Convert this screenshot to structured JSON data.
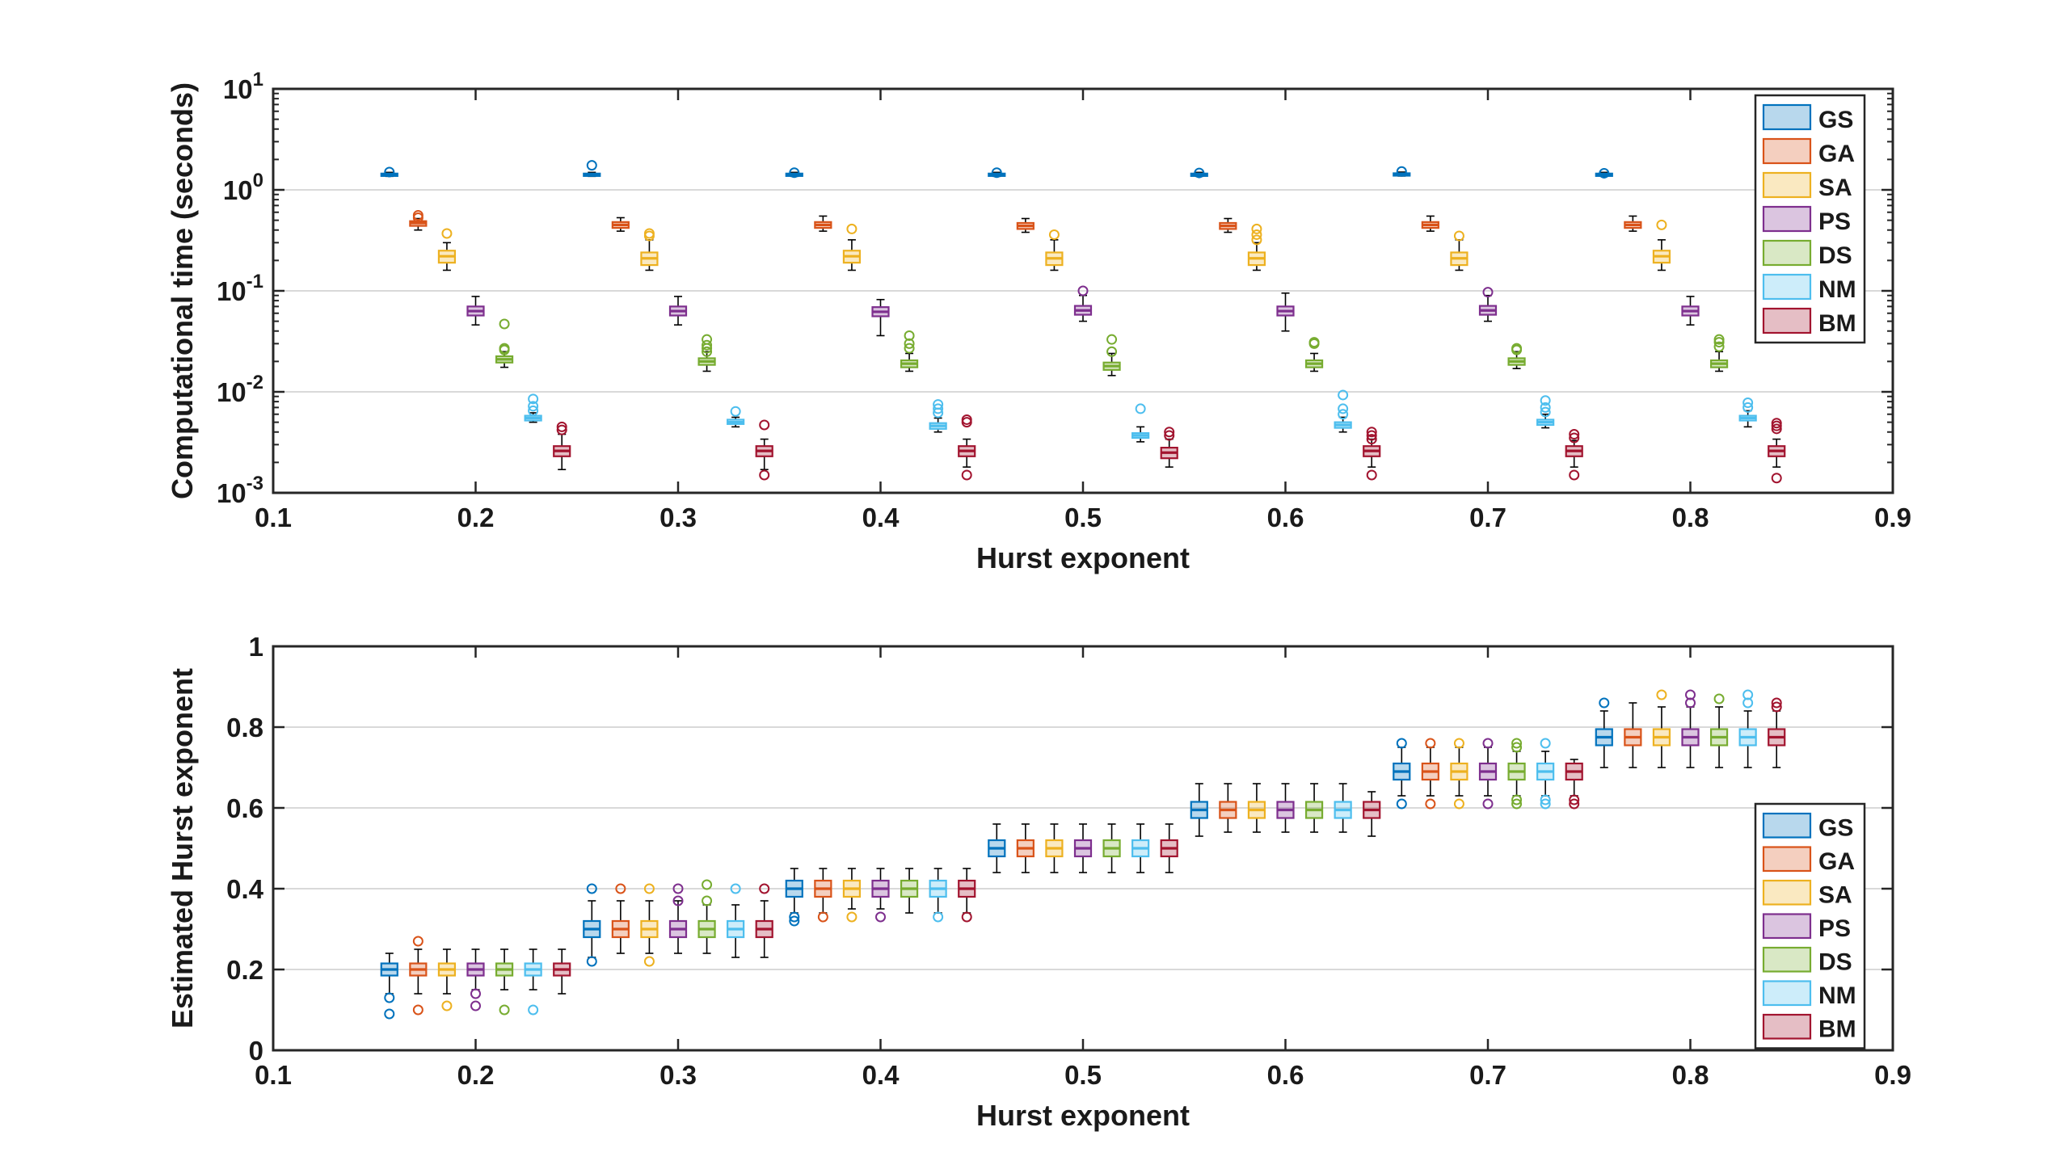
{
  "chart_data": [
    {
      "type": "box",
      "xlabel": "Hurst exponent",
      "ylabel": "Computational time (seconds)",
      "yscale": "log",
      "xlim": [
        0.1,
        0.9
      ],
      "ylim": [
        0.001,
        10
      ],
      "xticks": [
        "0.1",
        "0.2",
        "0.3",
        "0.4",
        "0.5",
        "0.6",
        "0.7",
        "0.8",
        "0.9"
      ],
      "yticks": [
        "10^-3",
        "10^-2",
        "10^-1",
        "10^0",
        "10^1"
      ],
      "grid": "horizontal",
      "legend": [
        "GS",
        "GA",
        "SA",
        "PS",
        "DS",
        "NM",
        "BM"
      ],
      "legend_position": "top-right",
      "hurst_values": [
        0.2,
        0.3,
        0.4,
        0.5,
        0.6,
        0.7,
        0.8
      ],
      "series": [
        {
          "name": "GS",
          "color": "#0072BD",
          "median": [
            1.42,
            1.42,
            1.42,
            1.42,
            1.42,
            1.43,
            1.42
          ],
          "q1": [
            1.39,
            1.39,
            1.39,
            1.39,
            1.39,
            1.4,
            1.39
          ],
          "q3": [
            1.45,
            1.45,
            1.45,
            1.45,
            1.45,
            1.46,
            1.45
          ],
          "whisker_low": [
            1.36,
            1.36,
            1.36,
            1.36,
            1.36,
            1.37,
            1.36
          ],
          "whisker_high": [
            1.49,
            1.49,
            1.49,
            1.49,
            1.49,
            1.5,
            1.49
          ],
          "outliers": [
            [
              1.5
            ],
            [
              1.75
            ],
            [
              1.48
            ],
            [
              1.48
            ],
            [
              1.47
            ],
            [
              1.52
            ],
            [
              1.46
            ]
          ]
        },
        {
          "name": "GA",
          "color": "#D95319",
          "median": [
            0.47,
            0.45,
            0.45,
            0.44,
            0.44,
            0.45,
            0.45
          ],
          "q1": [
            0.44,
            0.42,
            0.42,
            0.41,
            0.41,
            0.42,
            0.42
          ],
          "q3": [
            0.49,
            0.48,
            0.48,
            0.47,
            0.47,
            0.48,
            0.48
          ],
          "whisker_low": [
            0.4,
            0.39,
            0.39,
            0.38,
            0.38,
            0.39,
            0.39
          ],
          "whisker_high": [
            0.52,
            0.53,
            0.55,
            0.52,
            0.52,
            0.55,
            0.55
          ],
          "outliers": [
            [
              0.53,
              0.56
            ],
            [],
            [],
            [],
            [],
            [],
            []
          ]
        },
        {
          "name": "SA",
          "color": "#EDB120",
          "median": [
            0.22,
            0.21,
            0.22,
            0.21,
            0.21,
            0.21,
            0.22
          ],
          "q1": [
            0.19,
            0.18,
            0.19,
            0.18,
            0.18,
            0.18,
            0.19
          ],
          "q3": [
            0.25,
            0.24,
            0.25,
            0.24,
            0.24,
            0.24,
            0.25
          ],
          "whisker_low": [
            0.16,
            0.16,
            0.16,
            0.16,
            0.16,
            0.16,
            0.16
          ],
          "whisker_high": [
            0.3,
            0.32,
            0.32,
            0.32,
            0.3,
            0.32,
            0.32
          ],
          "outliers": [
            [
              0.37
            ],
            [
              0.35,
              0.37
            ],
            [
              0.41
            ],
            [
              0.36
            ],
            [
              0.32,
              0.36,
              0.41
            ],
            [
              0.35
            ],
            [
              0.45
            ]
          ]
        },
        {
          "name": "PS",
          "color": "#7E2F8E",
          "median": [
            0.063,
            0.063,
            0.062,
            0.064,
            0.063,
            0.064,
            0.063
          ],
          "q1": [
            0.057,
            0.057,
            0.056,
            0.058,
            0.057,
            0.058,
            0.057
          ],
          "q3": [
            0.07,
            0.07,
            0.069,
            0.071,
            0.07,
            0.071,
            0.07
          ],
          "whisker_low": [
            0.046,
            0.046,
            0.036,
            0.05,
            0.04,
            0.05,
            0.046
          ],
          "whisker_high": [
            0.088,
            0.088,
            0.082,
            0.09,
            0.095,
            0.09,
            0.088
          ],
          "outliers": [
            [],
            [],
            [],
            [
              0.1
            ],
            [],
            [
              0.097
            ],
            []
          ]
        },
        {
          "name": "DS",
          "color": "#77AC30",
          "median": [
            0.021,
            0.02,
            0.019,
            0.018,
            0.019,
            0.02,
            0.019
          ],
          "q1": [
            0.0195,
            0.0185,
            0.0175,
            0.0165,
            0.0175,
            0.0185,
            0.0175
          ],
          "q3": [
            0.0225,
            0.0215,
            0.0205,
            0.0195,
            0.0205,
            0.0215,
            0.0205
          ],
          "whisker_low": [
            0.0175,
            0.016,
            0.016,
            0.0145,
            0.016,
            0.017,
            0.016
          ],
          "whisker_high": [
            0.025,
            0.025,
            0.024,
            0.024,
            0.024,
            0.025,
            0.025
          ],
          "outliers": [
            [
              0.026,
              0.027,
              0.047
            ],
            [
              0.025,
              0.027,
              0.029,
              0.033
            ],
            [
              0.027,
              0.03,
              0.036
            ],
            [
              0.025,
              0.033
            ],
            [
              0.03,
              0.031
            ],
            [
              0.026,
              0.027
            ],
            [
              0.028,
              0.031,
              0.033
            ]
          ]
        },
        {
          "name": "NM",
          "color": "#4DBEEE",
          "median": [
            0.0055,
            0.005,
            0.0046,
            0.0037,
            0.0047,
            0.005,
            0.0055
          ],
          "q1": [
            0.0052,
            0.0048,
            0.0043,
            0.0035,
            0.0044,
            0.0047,
            0.0052
          ],
          "q3": [
            0.0058,
            0.0053,
            0.0049,
            0.0039,
            0.005,
            0.0053,
            0.0058
          ],
          "whisker_low": [
            0.005,
            0.0045,
            0.004,
            0.0032,
            0.004,
            0.0044,
            0.0045
          ],
          "whisker_high": [
            0.0062,
            0.0056,
            0.0055,
            0.0045,
            0.0056,
            0.006,
            0.0065
          ],
          "outliers": [
            [
              0.0065,
              0.0072,
              0.0085
            ],
            [
              0.0064
            ],
            [
              0.0062,
              0.0068,
              0.0075
            ],
            [
              0.0068
            ],
            [
              0.006,
              0.0068,
              0.0093
            ],
            [
              0.0063,
              0.007,
              0.0082
            ],
            [
              0.007,
              0.0078
            ]
          ]
        },
        {
          "name": "BM",
          "color": "#A2142F",
          "median": [
            0.0026,
            0.0026,
            0.0026,
            0.0025,
            0.0026,
            0.0026,
            0.0026
          ],
          "q1": [
            0.0023,
            0.0023,
            0.0023,
            0.0022,
            0.0023,
            0.0023,
            0.0023
          ],
          "q3": [
            0.0029,
            0.0029,
            0.0029,
            0.0028,
            0.0029,
            0.0029,
            0.0029
          ],
          "whisker_low": [
            0.0017,
            0.0017,
            0.0018,
            0.0018,
            0.0018,
            0.0018,
            0.0018
          ],
          "whisker_high": [
            0.0038,
            0.0034,
            0.0034,
            0.0034,
            0.0034,
            0.0033,
            0.0034
          ],
          "outliers": [
            [
              0.0042,
              0.0045
            ],
            [
              0.0015,
              0.0047
            ],
            [
              0.0015,
              0.005,
              0.0053
            ],
            [
              0.0037,
              0.004
            ],
            [
              0.0015,
              0.0034,
              0.0037,
              0.004
            ],
            [
              0.0015,
              0.0035,
              0.0038
            ],
            [
              0.0014,
              0.0043,
              0.0046,
              0.0049
            ]
          ]
        }
      ]
    },
    {
      "type": "box",
      "xlabel": "Hurst exponent",
      "ylabel": "Estimated Hurst exponent",
      "yscale": "linear",
      "xlim": [
        0.1,
        0.9
      ],
      "ylim": [
        0,
        1
      ],
      "xticks": [
        "0.1",
        "0.2",
        "0.3",
        "0.4",
        "0.5",
        "0.6",
        "0.7",
        "0.8",
        "0.9"
      ],
      "yticks": [
        "0",
        "0.2",
        "0.4",
        "0.6",
        "0.8",
        "1"
      ],
      "grid": "horizontal",
      "legend": [
        "GS",
        "GA",
        "SA",
        "PS",
        "DS",
        "NM",
        "BM"
      ],
      "legend_position": "lower-right",
      "hurst_values": [
        0.2,
        0.3,
        0.4,
        0.5,
        0.6,
        0.7,
        0.8
      ],
      "series": [
        {
          "name": "GS",
          "color": "#0072BD",
          "median": [
            0.2,
            0.3,
            0.4,
            0.5,
            0.595,
            0.69,
            0.775
          ],
          "q1": [
            0.185,
            0.28,
            0.38,
            0.48,
            0.575,
            0.67,
            0.755
          ],
          "q3": [
            0.215,
            0.32,
            0.42,
            0.52,
            0.615,
            0.71,
            0.795
          ],
          "whisker_low": [
            0.14,
            0.23,
            0.34,
            0.44,
            0.53,
            0.63,
            0.7
          ],
          "whisker_high": [
            0.24,
            0.37,
            0.45,
            0.56,
            0.66,
            0.75,
            0.84
          ],
          "outliers": [
            [
              0.09,
              0.13
            ],
            [
              0.22,
              0.4
            ],
            [
              0.32,
              0.33
            ],
            [],
            [],
            [
              0.61,
              0.76
            ],
            [
              0.86
            ]
          ]
        },
        {
          "name": "GA",
          "color": "#D95319",
          "median": [
            0.2,
            0.3,
            0.4,
            0.5,
            0.595,
            0.69,
            0.775
          ],
          "q1": [
            0.185,
            0.28,
            0.38,
            0.48,
            0.575,
            0.67,
            0.755
          ],
          "q3": [
            0.215,
            0.32,
            0.42,
            0.52,
            0.615,
            0.71,
            0.795
          ],
          "whisker_low": [
            0.14,
            0.24,
            0.34,
            0.44,
            0.54,
            0.63,
            0.7
          ],
          "whisker_high": [
            0.25,
            0.37,
            0.45,
            0.56,
            0.66,
            0.75,
            0.86
          ],
          "outliers": [
            [
              0.1,
              0.27
            ],
            [
              0.4
            ],
            [
              0.33
            ],
            [],
            [],
            [
              0.61,
              0.76
            ],
            []
          ]
        },
        {
          "name": "SA",
          "color": "#EDB120",
          "median": [
            0.2,
            0.3,
            0.4,
            0.5,
            0.595,
            0.69,
            0.775
          ],
          "q1": [
            0.185,
            0.28,
            0.38,
            0.48,
            0.575,
            0.67,
            0.755
          ],
          "q3": [
            0.215,
            0.32,
            0.42,
            0.52,
            0.615,
            0.71,
            0.795
          ],
          "whisker_low": [
            0.14,
            0.24,
            0.35,
            0.44,
            0.54,
            0.63,
            0.7
          ],
          "whisker_high": [
            0.25,
            0.37,
            0.45,
            0.56,
            0.66,
            0.75,
            0.85
          ],
          "outliers": [
            [
              0.11
            ],
            [
              0.22,
              0.4
            ],
            [
              0.33
            ],
            [],
            [],
            [
              0.61,
              0.76
            ],
            [
              0.88
            ]
          ]
        },
        {
          "name": "PS",
          "color": "#7E2F8E",
          "median": [
            0.2,
            0.3,
            0.4,
            0.5,
            0.595,
            0.69,
            0.775
          ],
          "q1": [
            0.185,
            0.28,
            0.38,
            0.48,
            0.575,
            0.67,
            0.755
          ],
          "q3": [
            0.215,
            0.32,
            0.42,
            0.52,
            0.615,
            0.71,
            0.795
          ],
          "whisker_low": [
            0.15,
            0.24,
            0.35,
            0.44,
            0.54,
            0.63,
            0.7
          ],
          "whisker_high": [
            0.25,
            0.37,
            0.45,
            0.56,
            0.66,
            0.75,
            0.85
          ],
          "outliers": [
            [
              0.11,
              0.14
            ],
            [
              0.37,
              0.4
            ],
            [
              0.33
            ],
            [],
            [],
            [
              0.61,
              0.76
            ],
            [
              0.86,
              0.88
            ]
          ]
        },
        {
          "name": "DS",
          "color": "#77AC30",
          "median": [
            0.2,
            0.3,
            0.4,
            0.5,
            0.595,
            0.69,
            0.775
          ],
          "q1": [
            0.185,
            0.28,
            0.38,
            0.48,
            0.575,
            0.67,
            0.755
          ],
          "q3": [
            0.215,
            0.32,
            0.42,
            0.52,
            0.615,
            0.71,
            0.795
          ],
          "whisker_low": [
            0.15,
            0.24,
            0.34,
            0.44,
            0.54,
            0.63,
            0.7
          ],
          "whisker_high": [
            0.25,
            0.36,
            0.45,
            0.56,
            0.66,
            0.74,
            0.85
          ],
          "outliers": [
            [
              0.1
            ],
            [
              0.37,
              0.41
            ],
            [],
            [],
            [],
            [
              0.61,
              0.62,
              0.75,
              0.76
            ],
            [
              0.87
            ]
          ]
        },
        {
          "name": "NM",
          "color": "#4DBEEE",
          "median": [
            0.2,
            0.3,
            0.4,
            0.5,
            0.595,
            0.69,
            0.775
          ],
          "q1": [
            0.185,
            0.28,
            0.38,
            0.48,
            0.575,
            0.67,
            0.755
          ],
          "q3": [
            0.215,
            0.32,
            0.42,
            0.52,
            0.615,
            0.71,
            0.795
          ],
          "whisker_low": [
            0.15,
            0.23,
            0.34,
            0.44,
            0.54,
            0.63,
            0.7
          ],
          "whisker_high": [
            0.25,
            0.36,
            0.45,
            0.56,
            0.66,
            0.74,
            0.84
          ],
          "outliers": [
            [
              0.1
            ],
            [
              0.4
            ],
            [
              0.33
            ],
            [],
            [],
            [
              0.61,
              0.62,
              0.76
            ],
            [
              0.86,
              0.88
            ]
          ]
        },
        {
          "name": "BM",
          "color": "#A2142F",
          "median": [
            0.2,
            0.3,
            0.4,
            0.5,
            0.595,
            0.69,
            0.775
          ],
          "q1": [
            0.185,
            0.28,
            0.38,
            0.48,
            0.575,
            0.67,
            0.755
          ],
          "q3": [
            0.215,
            0.32,
            0.42,
            0.52,
            0.615,
            0.71,
            0.795
          ],
          "whisker_low": [
            0.14,
            0.23,
            0.34,
            0.44,
            0.53,
            0.63,
            0.7
          ],
          "whisker_high": [
            0.25,
            0.37,
            0.45,
            0.56,
            0.64,
            0.72,
            0.84
          ],
          "outliers": [
            [],
            [
              0.4
            ],
            [
              0.33
            ],
            [],
            [],
            [
              0.61,
              0.62
            ],
            [
              0.85,
              0.86
            ]
          ]
        }
      ]
    }
  ]
}
